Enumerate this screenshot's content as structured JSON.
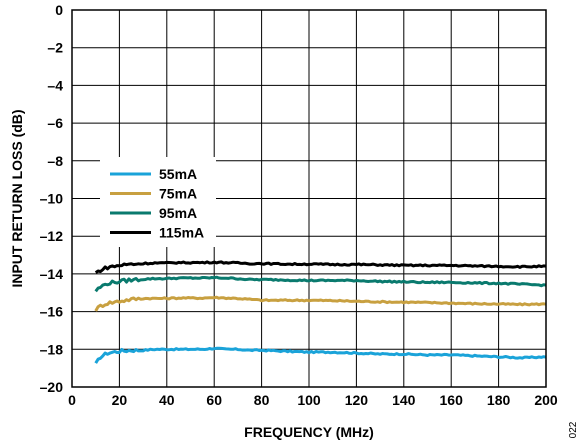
{
  "figure_id": "022",
  "chart_data": {
    "type": "line",
    "title": "",
    "xlabel": "FREQUENCY (MHz)",
    "ylabel": "INPUT RETURN LOSS (dB)",
    "xlim": [
      0,
      200
    ],
    "ylim": [
      -20,
      0
    ],
    "x_ticks": [
      0,
      20,
      40,
      60,
      80,
      100,
      120,
      140,
      160,
      180,
      200
    ],
    "y_ticks": [
      0,
      -2,
      -4,
      -6,
      -8,
      -10,
      -12,
      -14,
      -16,
      -18,
      -20
    ],
    "x_tick_labels": [
      "0",
      "20",
      "40",
      "60",
      "80",
      "100",
      "120",
      "140",
      "160",
      "180",
      "200"
    ],
    "y_tick_labels": [
      "0",
      "–2",
      "–4",
      "–6",
      "–8",
      "–10",
      "–12",
      "–14",
      "–16",
      "–18",
      "–20"
    ],
    "grid": true,
    "legend_position": "left, inside plot",
    "x": [
      10,
      12,
      15,
      20,
      25,
      30,
      35,
      40,
      45,
      50,
      55,
      60,
      65,
      70,
      75,
      80,
      90,
      100,
      110,
      120,
      130,
      140,
      150,
      160,
      170,
      180,
      190,
      200
    ],
    "series": [
      {
        "name": "55mA",
        "color": "#1aa3d9",
        "values": [
          -18.8,
          -18.4,
          -18.2,
          -18.1,
          -18.05,
          -18.05,
          -18.0,
          -18.0,
          -18.0,
          -18.0,
          -18.0,
          -17.95,
          -18.0,
          -18.0,
          -18.05,
          -18.05,
          -18.1,
          -18.15,
          -18.15,
          -18.2,
          -18.25,
          -18.25,
          -18.3,
          -18.3,
          -18.35,
          -18.4,
          -18.45,
          -18.4
        ]
      },
      {
        "name": "75mA",
        "color": "#c8a040",
        "values": [
          -15.9,
          -15.7,
          -15.55,
          -15.45,
          -15.35,
          -15.3,
          -15.3,
          -15.3,
          -15.28,
          -15.28,
          -15.28,
          -15.25,
          -15.28,
          -15.3,
          -15.35,
          -15.4,
          -15.4,
          -15.4,
          -15.42,
          -15.45,
          -15.48,
          -15.5,
          -15.52,
          -15.55,
          -15.58,
          -15.6,
          -15.62,
          -15.6
        ]
      },
      {
        "name": "95mA",
        "color": "#0a7a6e",
        "values": [
          -14.9,
          -14.7,
          -14.5,
          -14.4,
          -14.32,
          -14.28,
          -14.25,
          -14.25,
          -14.22,
          -14.22,
          -14.22,
          -14.2,
          -14.22,
          -14.25,
          -14.3,
          -14.3,
          -14.32,
          -14.35,
          -14.35,
          -14.35,
          -14.4,
          -14.42,
          -14.45,
          -14.45,
          -14.48,
          -14.5,
          -14.55,
          -14.6
        ]
      },
      {
        "name": "115mA",
        "color": "#000000",
        "values": [
          -13.95,
          -13.8,
          -13.65,
          -13.55,
          -13.48,
          -13.45,
          -13.42,
          -13.42,
          -13.4,
          -13.4,
          -13.4,
          -13.38,
          -13.4,
          -13.42,
          -13.45,
          -13.45,
          -13.48,
          -13.48,
          -13.5,
          -13.5,
          -13.52,
          -13.55,
          -13.55,
          -13.55,
          -13.58,
          -13.6,
          -13.62,
          -13.6
        ]
      }
    ]
  }
}
